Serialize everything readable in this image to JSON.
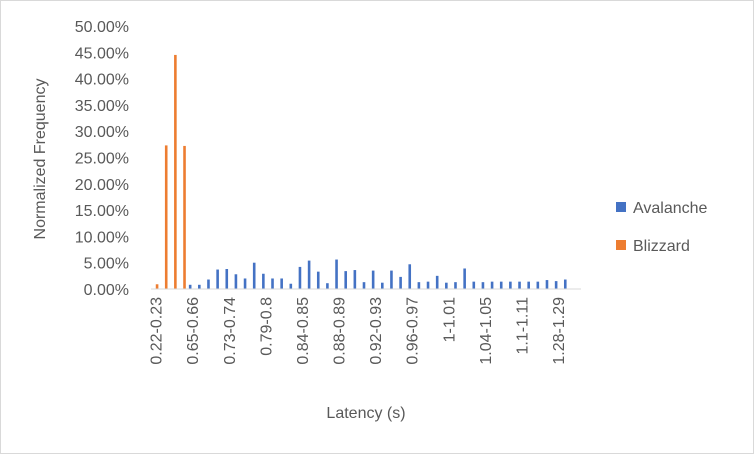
{
  "chart_data": {
    "type": "bar",
    "title": "",
    "xlabel": "Latency (s)",
    "ylabel": "Normalized Frequency",
    "ylim": [
      0,
      50
    ],
    "y_ticks": [
      "0.00%",
      "5.00%",
      "10.00%",
      "15.00%",
      "20.00%",
      "25.00%",
      "30.00%",
      "35.00%",
      "40.00%",
      "45.00%",
      "50.00%"
    ],
    "y_tick_values": [
      0,
      5,
      10,
      15,
      20,
      25,
      30,
      35,
      40,
      45,
      50
    ],
    "grid": false,
    "legend_position": "right",
    "x_tick_labels": [
      {
        "index": 0,
        "label": "0.22-0.23"
      },
      {
        "index": 4,
        "label": "0.65-0.66"
      },
      {
        "index": 8,
        "label": "0.73-0.74"
      },
      {
        "index": 12,
        "label": "0.79-0.8"
      },
      {
        "index": 16,
        "label": "0.84-0.85"
      },
      {
        "index": 20,
        "label": "0.88-0.89"
      },
      {
        "index": 24,
        "label": "0.92-0.93"
      },
      {
        "index": 28,
        "label": "0.96-0.97"
      },
      {
        "index": 32,
        "label": "1-1.01"
      },
      {
        "index": 36,
        "label": "1.04-1.05"
      },
      {
        "index": 40,
        "label": "1.1-1.11"
      },
      {
        "index": 44,
        "label": "1.28-1.29"
      }
    ],
    "category_count": 47,
    "series": [
      {
        "name": "Avalanche",
        "color": "#4472c4",
        "values": [
          0,
          0,
          0,
          0,
          0.8,
          0.8,
          1.8,
          3.7,
          3.8,
          2.8,
          2.0,
          5.0,
          2.9,
          2.0,
          2.0,
          1.0,
          4.2,
          5.4,
          3.3,
          1.1,
          5.6,
          3.4,
          3.6,
          1.3,
          3.5,
          1.2,
          3.5,
          2.3,
          4.7,
          1.3,
          1.4,
          2.5,
          1.2,
          1.3,
          3.9,
          1.4,
          1.3,
          1.4,
          1.4,
          1.4,
          1.4,
          1.4,
          1.4,
          1.7,
          1.5,
          1.8,
          0
        ]
      },
      {
        "name": "Blizzard",
        "color": "#ed7d31",
        "values": [
          0.9,
          27.3,
          44.5,
          27.2,
          0,
          0,
          0,
          0,
          0,
          0,
          0,
          0,
          0,
          0,
          0,
          0,
          0,
          0,
          0,
          0,
          0,
          0,
          0,
          0,
          0,
          0,
          0,
          0,
          0,
          0,
          0,
          0,
          0,
          0,
          0,
          0,
          0,
          0,
          0,
          0,
          0,
          0,
          0,
          0,
          0,
          0,
          0
        ]
      }
    ]
  }
}
